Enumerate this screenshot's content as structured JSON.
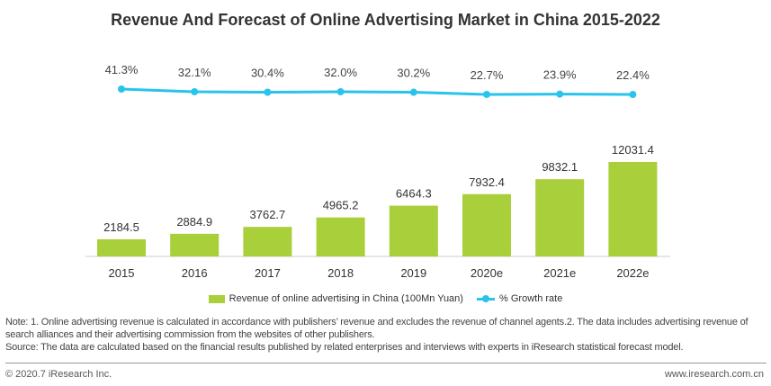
{
  "chart_data": {
    "type": "bar",
    "title": "Revenue And Forecast of Online Advertising Market in China 2015-2022",
    "categories": [
      "2015",
      "2016",
      "2017",
      "2018",
      "2019",
      "2020e",
      "2021e",
      "2022e"
    ],
    "series": [
      {
        "name": "Revenue of online advertising in China (100Mn Yuan)",
        "type": "bar",
        "color": "#a9cf3a",
        "values": [
          2184.5,
          2884.9,
          3762.7,
          4965.2,
          6464.3,
          7932.4,
          9832.1,
          12031.4
        ],
        "labels": [
          "2184.5",
          "2884.9",
          "3762.7",
          "4965.2",
          "6464.3",
          "7932.4",
          "9832.1",
          "12031.4"
        ]
      },
      {
        "name": "% Growth rate",
        "type": "line",
        "color": "#29c3ec",
        "values": [
          41.3,
          32.1,
          30.4,
          32.0,
          30.2,
          22.7,
          23.9,
          22.4
        ],
        "labels": [
          "41.3%",
          "32.1%",
          "30.4%",
          "32.0%",
          "30.2%",
          "22.7%",
          "23.9%",
          "22.4%"
        ]
      }
    ],
    "legend": "bottom-center"
  },
  "notes": {
    "line1": "Note: 1. Online advertising revenue is calculated in accordance with publishers’   revenue and excludes the revenue of channel agents.2. The data includes advertising revenue of",
    "line2": "search alliances and their advertising commission from the websites of other publishers.",
    "line3": "Source: The data are calculated based on the financial results published by related enterprises and interviews with experts in iResearch statistical forecast model."
  },
  "footer": {
    "copyright": "© 2020.7 iResearch Inc.",
    "website": "www.iresearch.com.cn"
  }
}
